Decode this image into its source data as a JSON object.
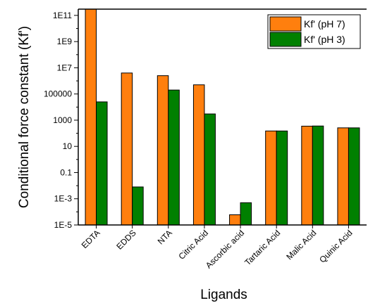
{
  "chart_data": {
    "type": "bar",
    "categories": [
      "EDTA",
      "EDDS",
      "NTA",
      "Citric Acid",
      "Ascorbic acid",
      "Tartaric Acid",
      "Malic Acid",
      "Quinic Acid"
    ],
    "series": [
      {
        "name": "Kf' (pH 7)",
        "color": "#ff7f0e",
        "values": [
          400000000000.0,
          4000000.0,
          2500000.0,
          500000.0,
          6e-05,
          150,
          350,
          260
        ]
      },
      {
        "name": "Kf' (pH 3)",
        "color": "#008000",
        "values": [
          25000.0,
          0.008,
          200000.0,
          3000.0,
          0.0005,
          150,
          360,
          260
        ]
      }
    ],
    "xlabel": "Ligands",
    "ylabel": "Conditional force constant (Kf')",
    "yscale": "log",
    "ylim": [
      1e-05,
      300000000000.0
    ],
    "yticks": [
      {
        "value": 1e-05,
        "label": "1E-5"
      },
      {
        "value": 0.001,
        "label": "1E-3"
      },
      {
        "value": 0.1,
        "label": "0.1"
      },
      {
        "value": 10,
        "label": "10"
      },
      {
        "value": 1000,
        "label": "1000"
      },
      {
        "value": 100000,
        "label": "100000"
      },
      {
        "value": 10000000.0,
        "label": "1E7"
      },
      {
        "value": 1000000000.0,
        "label": "1E9"
      },
      {
        "value": 100000000000.0,
        "label": "1E11"
      }
    ],
    "legend_position": "top-right",
    "grid": false
  }
}
